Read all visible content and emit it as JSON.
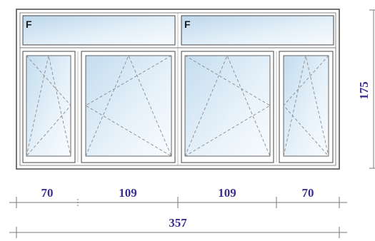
{
  "window": {
    "transoms": [
      {
        "label": "F"
      },
      {
        "label": "F"
      }
    ],
    "sashes": [
      {
        "opening": "tilt-turn-left"
      },
      {
        "opening": "tilt-turn-left"
      },
      {
        "opening": "tilt-turn-right"
      },
      {
        "opening": "tilt-turn-right"
      }
    ]
  },
  "dimensions": {
    "widths": [
      "70",
      "109",
      "109",
      "70"
    ],
    "total_width": "357",
    "height": "175"
  },
  "colors": {
    "frame": "#555555",
    "glass_light": "#f4f9fd",
    "glass_dark": "#bcd7ec",
    "dash": "#8a8a8a",
    "dim_text": "#3a2f8f",
    "dim_line": "#7a7a7a"
  }
}
